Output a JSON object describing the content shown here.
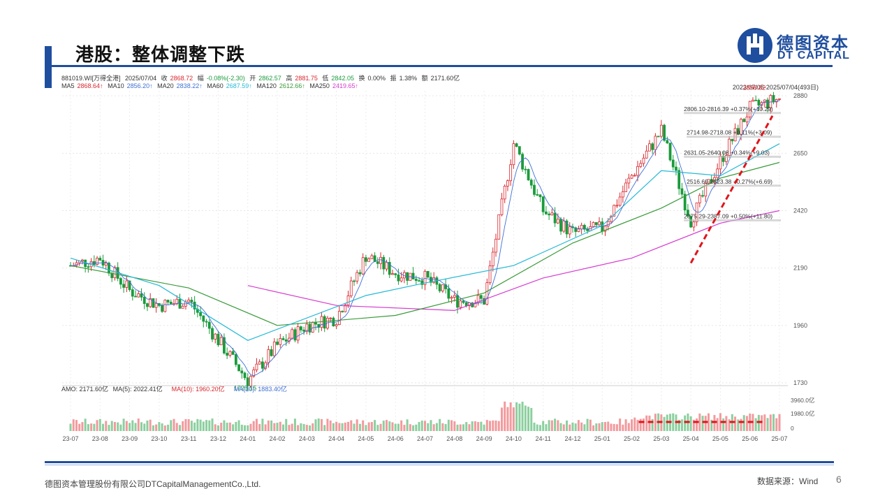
{
  "slide": {
    "title": "港股：整体调整下跌",
    "logo_cn": "德图资本",
    "logo_en": "DT CAPITAL",
    "footer_company": "德图资本管理股份有限公司DTCapitalManagementCo.,Ltd.",
    "footer_source": "数据来源：Wind",
    "page_number": "6",
    "colors": {
      "brand": "#1f4e9e",
      "up": "#d9262c",
      "down": "#1a9b3c"
    }
  },
  "quote": {
    "code": "881019.WI[万得全港]",
    "date": "2025/07/04",
    "close_label": "收",
    "close": "2868.72",
    "change_label": "幅",
    "change": "-0.08%(-2.30)",
    "open_label": "开",
    "open": "2862.57",
    "high_label": "高",
    "high": "2881.75",
    "low_label": "低",
    "low": "2842.05",
    "turnover_label": "换",
    "turnover": "0.00%",
    "amplitude_label": "振",
    "amplitude": "1.38%",
    "amount_label": "额",
    "amount": "2171.60亿",
    "ma": [
      {
        "name": "MA5",
        "value": "2868.64↑",
        "color": "#d9262c"
      },
      {
        "name": "MA10",
        "value": "2856.20↑",
        "color": "#3d6fd6"
      },
      {
        "name": "MA20",
        "value": "2838.22↑",
        "color": "#3d6fd6"
      },
      {
        "name": "MA60",
        "value": "2687.59↑",
        "color": "#25b9d6"
      },
      {
        "name": "MA120",
        "value": "2612.66↑",
        "color": "#3a9b3a"
      },
      {
        "name": "MA250",
        "value": "2419.65↑",
        "color": "#d63ad0"
      }
    ],
    "range": "2023/07/05-2025/07/04(493日)"
  },
  "chart_data": {
    "type": "candlestick",
    "x_ticks": [
      "23-07",
      "23-08",
      "23-09",
      "23-10",
      "23-11",
      "23-12",
      "24-01",
      "24-02",
      "24-03",
      "24-04",
      "24-05",
      "24-06",
      "24-07",
      "24-08",
      "24-09",
      "24-10",
      "24-11",
      "24-12",
      "25-01",
      "25-02",
      "25-03",
      "25-04",
      "25-05",
      "25-06",
      "25-07"
    ],
    "y_ticks": [
      1730,
      1960,
      2190,
      2420,
      2650,
      2880
    ],
    "ylim": [
      1730,
      2900
    ],
    "price_path": [
      {
        "date": "2023-07",
        "close": 2200
      },
      {
        "date": "2023-08",
        "close": 2230
      },
      {
        "date": "2023-09",
        "close": 2100
      },
      {
        "date": "2023-10",
        "close": 2040
      },
      {
        "date": "2023-11",
        "close": 2060
      },
      {
        "date": "2023-12",
        "close": 1900
      },
      {
        "date": "2024-01",
        "close": 1740
      },
      {
        "date": "2024-02",
        "close": 1880
      },
      {
        "date": "2024-03",
        "close": 1960
      },
      {
        "date": "2024-04",
        "close": 1990
      },
      {
        "date": "2024-05",
        "close": 2240
      },
      {
        "date": "2024-06",
        "close": 2170
      },
      {
        "date": "2024-07",
        "close": 2150
      },
      {
        "date": "2024-08",
        "close": 2060
      },
      {
        "date": "2024-09",
        "close": 2060
      },
      {
        "date": "2024-10",
        "close": 2690
      },
      {
        "date": "2024-11",
        "close": 2420
      },
      {
        "date": "2024-12",
        "close": 2330
      },
      {
        "date": "2025-01",
        "close": 2350
      },
      {
        "date": "2025-02",
        "close": 2560
      },
      {
        "date": "2025-03",
        "close": 2740
      },
      {
        "date": "2025-04",
        "close": 2380
      },
      {
        "date": "2025-05",
        "close": 2620
      },
      {
        "date": "2025-06",
        "close": 2830
      },
      {
        "date": "2025-07",
        "close": 2869
      }
    ],
    "ma250_path": [
      {
        "date": "2024-01",
        "value": 2120
      },
      {
        "date": "2024-04",
        "value": 2040
      },
      {
        "date": "2024-08",
        "value": 2020
      },
      {
        "date": "2024-11",
        "value": 2150
      },
      {
        "date": "2025-02",
        "value": 2230
      },
      {
        "date": "2025-05",
        "value": 2370
      },
      {
        "date": "2025-07",
        "value": 2420
      }
    ],
    "ma120_path": [
      {
        "date": "2023-07",
        "value": 2200
      },
      {
        "date": "2023-11",
        "value": 2110
      },
      {
        "date": "2024-02",
        "value": 1960
      },
      {
        "date": "2024-06",
        "value": 2000
      },
      {
        "date": "2024-09",
        "value": 2090
      },
      {
        "date": "2024-12",
        "value": 2290
      },
      {
        "date": "2025-03",
        "value": 2430
      },
      {
        "date": "2025-05",
        "value": 2550
      },
      {
        "date": "2025-07",
        "value": 2613
      }
    ],
    "ma60_path": [
      {
        "date": "2023-07",
        "value": 2230
      },
      {
        "date": "2023-10",
        "value": 2120
      },
      {
        "date": "2024-01",
        "value": 1900
      },
      {
        "date": "2024-05",
        "value": 2080
      },
      {
        "date": "2024-07",
        "value": 2130
      },
      {
        "date": "2024-10",
        "value": 2200
      },
      {
        "date": "2025-01",
        "value": 2360
      },
      {
        "date": "2025-03",
        "value": 2580
      },
      {
        "date": "2025-05",
        "value": 2560
      },
      {
        "date": "2025-07",
        "value": 2688
      }
    ],
    "extremes": [
      {
        "label": "1729.15",
        "date": "2024-01",
        "value": 1729.15
      },
      {
        "label": "2898.82",
        "date": "2025-06",
        "value": 2898.82
      }
    ],
    "fib_levels": [
      {
        "label": "2806.10-2816.39 +0.37%(+10.29)",
        "value": 2811
      },
      {
        "label": "2714.98-2718.08 +0.11%(+3.09)",
        "value": 2716
      },
      {
        "label": "2631.05-2640.08 +0.34%(+9.03)",
        "value": 2636
      },
      {
        "label": "2516.69-2523.38 +0.27%(+6.69)",
        "value": 2520
      },
      {
        "label": "2375.29-2387.09 +0.50%(+11.80)",
        "value": 2381
      }
    ],
    "trend_line": [
      {
        "date": "2025-04",
        "value": 2210
      },
      {
        "date": "2025-07",
        "value": 2800
      }
    ],
    "volume": {
      "label": "AMO: 2171.60亿",
      "ma5": "MA(5): 2022.41亿",
      "ma10": "MA(10): 1960.20亿",
      "ma20": "MA(20): 1883.40亿",
      "y_ticks": [
        "3960.0亿",
        "1980.0亿",
        "0"
      ]
    }
  }
}
